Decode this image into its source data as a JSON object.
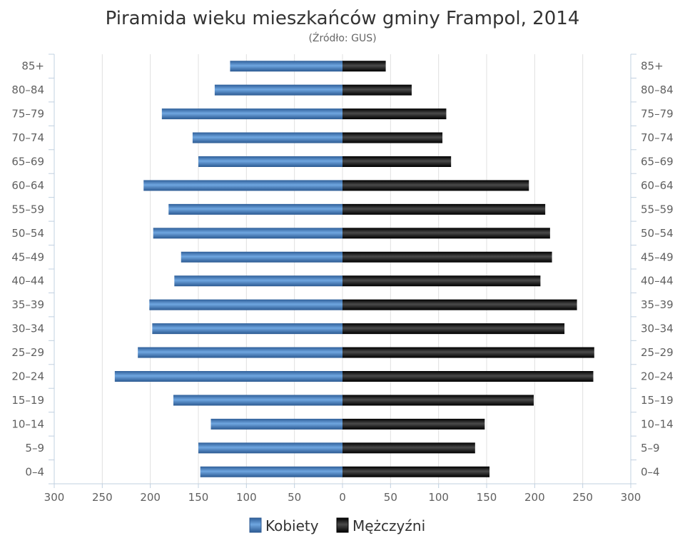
{
  "chart_data": {
    "type": "bar",
    "orientation": "horizontal",
    "subtype": "population-pyramid",
    "title": "Piramida wieku mieszkańców gminy Frampol, 2014",
    "subtitle": "(Źródło: GUS)",
    "categories": [
      "85+",
      "80–84",
      "75–79",
      "70–74",
      "65–69",
      "60–64",
      "55–59",
      "50–54",
      "45–49",
      "40–44",
      "35–39",
      "30–34",
      "25–29",
      "20–24",
      "15–19",
      "10–14",
      "5–9",
      "0–4"
    ],
    "series": [
      {
        "name": "Kobiety",
        "color": "#4a86c8",
        "side": "left",
        "values": [
          117,
          133,
          188,
          156,
          150,
          207,
          181,
          197,
          168,
          175,
          201,
          198,
          213,
          237,
          176,
          137,
          150,
          148
        ]
      },
      {
        "name": "Mężczyźni",
        "color": "#1a1a1a",
        "side": "right",
        "values": [
          45,
          72,
          108,
          104,
          113,
          194,
          211,
          216,
          218,
          206,
          244,
          231,
          262,
          261,
          199,
          148,
          138,
          153
        ]
      }
    ],
    "xlim": [
      -300,
      300
    ],
    "x_ticks": [
      "300",
      "250",
      "200",
      "150",
      "100",
      "50",
      "0",
      "50",
      "100",
      "150",
      "200",
      "250",
      "300"
    ],
    "x_tick_values": [
      -300,
      -250,
      -200,
      -150,
      -100,
      -50,
      0,
      50,
      100,
      150,
      200,
      250,
      300
    ],
    "grid": "vertical",
    "legend_position": "bottom-center"
  }
}
